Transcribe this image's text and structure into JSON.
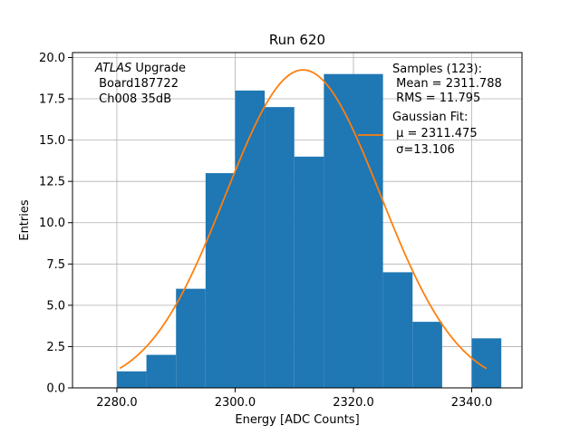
{
  "chart_data": {
    "type": "histogram",
    "title": "Run 620",
    "xlabel": "Energy [ADC Counts]",
    "ylabel": "Entries",
    "xlim": [
      2272.5,
      2348.5
    ],
    "ylim": [
      0,
      20.3
    ],
    "xticks": [
      2280,
      2300,
      2320,
      2340
    ],
    "xtick_labels": [
      "2280.0",
      "2300.0",
      "2320.0",
      "2340.0"
    ],
    "yticks": [
      0,
      2.5,
      5,
      7.5,
      10,
      12.5,
      15,
      17.5,
      20
    ],
    "ytick_labels": [
      "0.0",
      "2.5",
      "5.0",
      "7.5",
      "10.0",
      "12.5",
      "15.0",
      "17.5",
      "20.0"
    ],
    "grid": true,
    "bar_color": "#1f77b4",
    "fit_color": "#ff7f0e",
    "bins": [
      {
        "x0": 2280,
        "x1": 2285,
        "value": 1
      },
      {
        "x0": 2285,
        "x1": 2290,
        "value": 2
      },
      {
        "x0": 2290,
        "x1": 2295,
        "value": 6
      },
      {
        "x0": 2295,
        "x1": 2300,
        "value": 13
      },
      {
        "x0": 2300,
        "x1": 2305,
        "value": 18
      },
      {
        "x0": 2305,
        "x1": 2310,
        "value": 17
      },
      {
        "x0": 2310,
        "x1": 2315,
        "value": 14
      },
      {
        "x0": 2315,
        "x1": 2320,
        "value": 19
      },
      {
        "x0": 2320,
        "x1": 2325,
        "value": 19
      },
      {
        "x0": 2325,
        "x1": 2330,
        "value": 7
      },
      {
        "x0": 2330,
        "x1": 2335,
        "value": 4
      },
      {
        "x0": 2335,
        "x1": 2340,
        "value": 0
      },
      {
        "x0": 2340,
        "x1": 2345,
        "value": 3
      }
    ],
    "fit": {
      "type": "gaussian",
      "mu": 2311.475,
      "sigma": 13.106,
      "peak": 19.25,
      "x_start": 2280.5,
      "x_end": 2342.5
    },
    "annotation_left": {
      "line1_italic": "ATLAS",
      "line1_rest": " Upgrade",
      "line2": " Board187722",
      "line3": " Ch008 35dB"
    },
    "legend": {
      "samples_title": "Samples (123):",
      "mean_line": " Mean = 2311.788",
      "rms_line": " RMS = 11.795",
      "fit_title": "Gaussian Fit:",
      "mu_line": " μ = 2311.475",
      "sigma_line": " σ=13.106"
    }
  }
}
